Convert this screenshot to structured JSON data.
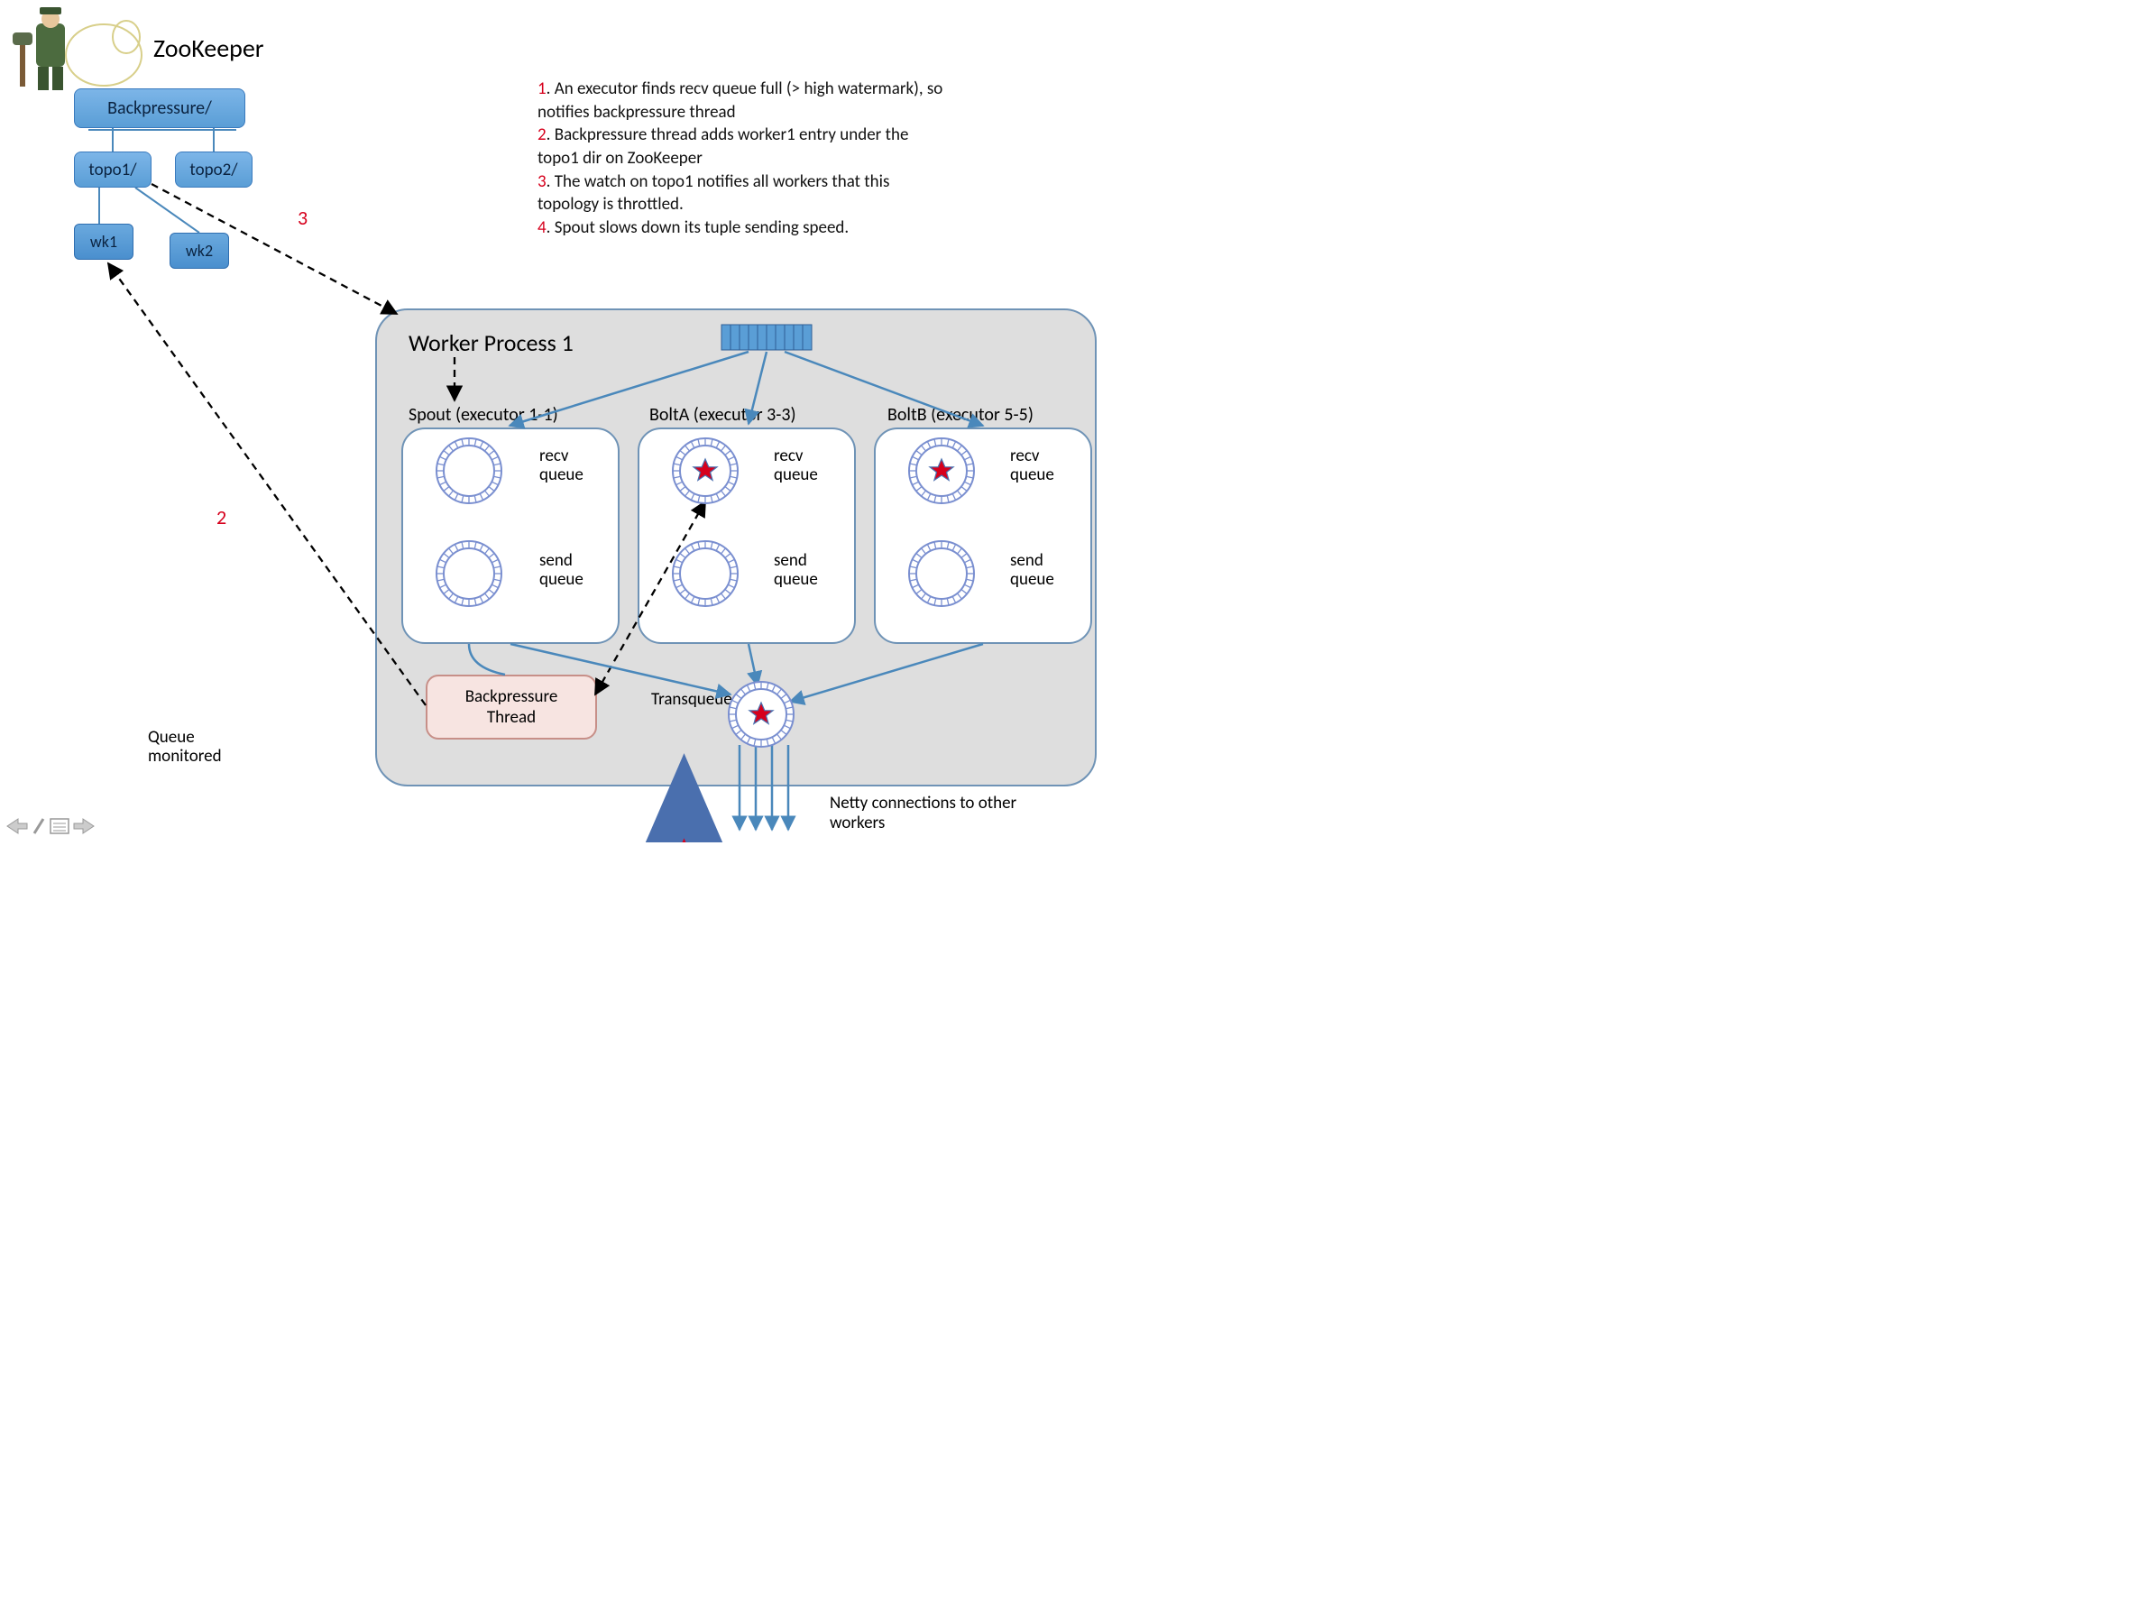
{
  "title": "ZooKeeper",
  "zk": {
    "root": "Backpressure/",
    "topos": [
      "topo1/",
      "topo2/"
    ],
    "workers": [
      "wk1",
      "wk2"
    ]
  },
  "steps": [
    {
      "n": "1",
      "text": "An executor finds recv queue full (> high watermark), so notifies backpressure thread"
    },
    {
      "n": "2",
      "text": "Backpressure thread adds worker1 entry under the topo1 dir on ZooKeeper"
    },
    {
      "n": "3",
      "text": "The watch on topo1 notifies all workers that this topology is throttled."
    },
    {
      "n": "4",
      "text": "Spout slows down its tuple sending speed."
    }
  ],
  "step_labels": {
    "s1": "1",
    "s2": "2",
    "s3": "3",
    "s4": "4"
  },
  "worker": {
    "title": "Worker Process 1",
    "executors": [
      {
        "name": "Spout (executor 1-1)",
        "recv": "recv queue",
        "send": "send queue",
        "monitored_recv": false
      },
      {
        "name": "BoltA (executor 3-3)",
        "recv": "recv queue",
        "send": "send queue",
        "monitored_recv": true
      },
      {
        "name": "BoltB (executor 5-5)",
        "recv": "recv queue",
        "send": "send queue",
        "monitored_recv": true
      }
    ],
    "backpressure": "Backpressure Thread",
    "trans": "Trans queue",
    "netty": "Netty connections to other workers"
  },
  "legend": "Queue monitored",
  "colors": {
    "zk_node_top": "#7cb5e8",
    "zk_node_bottom": "#5a9ed6",
    "zk_border": "#3a7abd",
    "step_num": "#d6001c",
    "worker_bg": "#dedede",
    "worker_border": "#6f93b6",
    "exec_bg": "#ffffff",
    "bp_bg": "#f7e4e1",
    "bp_border": "#c78f88",
    "line_solid": "#4a88bb",
    "line_dash": "#000000",
    "star_fill": "#d6001c",
    "ring_tick": "#7a8fd0",
    "queue_bar": "#5a9ed6"
  },
  "layout": {
    "aspect": "1237x934",
    "ring_radius": 36,
    "ring_ticks": 28,
    "queue_bar_segments": 10
  }
}
